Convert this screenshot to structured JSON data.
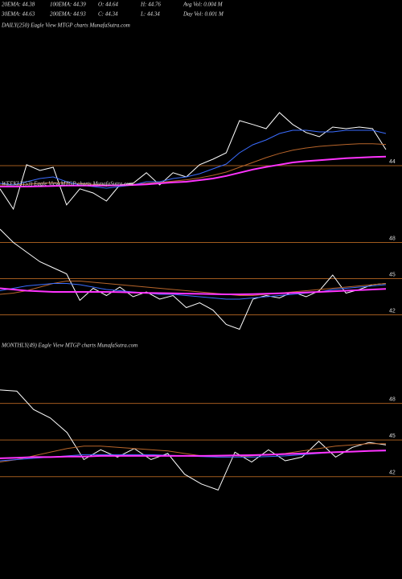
{
  "header": {
    "row1": [
      "20EMA: 44.38",
      "100EMA: 44.39",
      "O: 44.64",
      "H: 44.76",
      "Avg Vol: 0.004  M"
    ],
    "row2": [
      "30EMA: 44.63",
      "200EMA: 44.93",
      "C: 44.34",
      "L: 44.34",
      "Day Vol: 0.001 M"
    ]
  },
  "chart_data": [
    {
      "type": "line",
      "title": "DAILY(250) Eagle  View  MTGP charts MunafaSutra.com",
      "ylim": [
        42.5,
        46.2
      ],
      "yticks": [
        44
      ],
      "grid": true,
      "grid_color": "#a05a1e",
      "series": [
        {
          "name": "Price",
          "color": "#ffffff",
          "values": [
            43.28,
            42.65,
            44.03,
            43.85,
            43.95,
            42.78,
            43.28,
            43.15,
            42.9,
            43.4,
            43.45,
            43.78,
            43.4,
            43.78,
            43.65,
            44.03,
            44.2,
            44.4,
            45.4,
            45.28,
            45.15,
            45.65,
            45.28,
            45.03,
            44.9,
            45.2,
            45.15,
            45.2,
            45.15,
            44.5
          ]
        },
        {
          "name": "EMA mid",
          "color": "#b8652a",
          "values": [
            43.4,
            43.4,
            43.42,
            43.45,
            43.47,
            43.46,
            43.44,
            43.42,
            43.4,
            43.4,
            43.42,
            43.45,
            43.48,
            43.52,
            43.56,
            43.62,
            43.7,
            43.8,
            43.95,
            44.1,
            44.25,
            44.38,
            44.48,
            44.55,
            44.6,
            44.63,
            44.66,
            44.68,
            44.68,
            44.66
          ]
        },
        {
          "name": "EMA fast",
          "color": "#3a6cff",
          "values": [
            43.45,
            43.4,
            43.5,
            43.6,
            43.65,
            43.5,
            43.4,
            43.35,
            43.3,
            43.35,
            43.4,
            43.5,
            43.5,
            43.6,
            43.65,
            43.75,
            43.9,
            44.05,
            44.4,
            44.65,
            44.8,
            45.0,
            45.1,
            45.1,
            45.05,
            45.05,
            45.1,
            45.1,
            45.1,
            45.0
          ]
        },
        {
          "name": "EMA slow",
          "color": "#ff33ff",
          "values": [
            43.35,
            43.35,
            43.35,
            43.36,
            43.37,
            43.38,
            43.38,
            43.38,
            43.38,
            43.39,
            43.4,
            43.42,
            43.45,
            43.48,
            43.5,
            43.55,
            43.6,
            43.68,
            43.78,
            43.88,
            43.96,
            44.03,
            44.1,
            44.14,
            44.17,
            44.2,
            44.23,
            44.25,
            44.27,
            44.28
          ]
        }
      ]
    },
    {
      "type": "line",
      "title": "WEEKLY(53) Eagle  View  MTGP charts MunafaSutra.com",
      "ylim": [
        40.5,
        50.3
      ],
      "yticks": [
        48,
        45,
        42
      ],
      "grid": true,
      "grid_color": "#a05a1e",
      "series": [
        {
          "name": "Price",
          "color": "#ffffff",
          "values": [
            49.1,
            48.0,
            47.2,
            46.4,
            45.9,
            45.4,
            43.2,
            44.2,
            43.6,
            44.3,
            43.5,
            43.9,
            43.3,
            43.6,
            42.6,
            43.0,
            42.4,
            41.2,
            40.8,
            43.3,
            43.6,
            43.4,
            43.9,
            43.5,
            44.0,
            45.3,
            43.8,
            44.1,
            44.5,
            44.6
          ]
        },
        {
          "name": "EMA mid",
          "color": "#b8652a",
          "values": [
            43.7,
            43.8,
            44.0,
            44.3,
            44.6,
            44.8,
            44.8,
            44.7,
            44.6,
            44.5,
            44.4,
            44.3,
            44.2,
            44.1,
            44.0,
            43.9,
            43.8,
            43.7,
            43.6,
            43.6,
            43.7,
            43.8,
            43.9,
            44.0,
            44.1,
            44.2,
            44.3,
            44.4,
            44.5,
            44.6
          ]
        },
        {
          "name": "EMA fast",
          "color": "#3a6cff",
          "values": [
            44.0,
            44.2,
            44.4,
            44.5,
            44.6,
            44.6,
            44.5,
            44.3,
            44.1,
            44.0,
            43.9,
            43.8,
            43.7,
            43.7,
            43.6,
            43.5,
            43.4,
            43.3,
            43.3,
            43.4,
            43.5,
            43.6,
            43.7,
            43.8,
            43.9,
            44.1,
            44.2,
            44.3,
            44.4,
            44.5
          ]
        },
        {
          "name": "EMA slow",
          "color": "#ff33ff",
          "values": [
            44.2,
            44.1,
            44.0,
            43.95,
            43.9,
            43.9,
            43.9,
            43.9,
            43.9,
            43.88,
            43.85,
            43.82,
            43.8,
            43.78,
            43.76,
            43.74,
            43.72,
            43.7,
            43.7,
            43.72,
            43.75,
            43.78,
            43.82,
            43.86,
            43.9,
            43.95,
            44.0,
            44.05,
            44.1,
            44.15
          ]
        }
      ]
    },
    {
      "type": "line",
      "title": "MONTHLY(49) Eagle  View  MTGP charts MunafaSutra.com",
      "ylim": [
        40.6,
        51
      ],
      "yticks": [
        48,
        45,
        42
      ],
      "grid": true,
      "grid_color": "#a05a1e",
      "series": [
        {
          "name": "Price",
          "color": "#ffffff",
          "values": [
            49.1,
            49.0,
            47.5,
            46.8,
            45.6,
            43.4,
            44.2,
            43.6,
            44.3,
            43.4,
            43.9,
            42.2,
            41.4,
            40.9,
            44.0,
            43.2,
            44.2,
            43.3,
            43.6,
            44.9,
            43.6,
            44.4,
            44.8,
            44.6
          ]
        },
        {
          "name": "EMA mid",
          "color": "#b8652a",
          "values": [
            43.2,
            43.4,
            43.7,
            44.0,
            44.3,
            44.5,
            44.5,
            44.4,
            44.3,
            44.2,
            44.1,
            43.9,
            43.7,
            43.6,
            43.6,
            43.7,
            43.8,
            43.9,
            44.1,
            44.3,
            44.5,
            44.6,
            44.7,
            44.7
          ]
        },
        {
          "name": "EMA fast",
          "color": "#3a6cff",
          "values": [
            43.3,
            43.4,
            43.5,
            43.6,
            43.7,
            43.8,
            43.8,
            43.8,
            43.8,
            43.8,
            43.75,
            43.7,
            43.65,
            43.6,
            43.6,
            43.6,
            43.65,
            43.7,
            43.8,
            43.9,
            44.0,
            44.05,
            44.1,
            44.1
          ]
        },
        {
          "name": "EMA slow",
          "color": "#ff33ff",
          "values": [
            43.5,
            43.55,
            43.6,
            43.6,
            43.65,
            43.65,
            43.7,
            43.7,
            43.7,
            43.7,
            43.7,
            43.7,
            43.7,
            43.72,
            43.74,
            43.76,
            43.8,
            43.85,
            43.9,
            43.95,
            44.0,
            44.05,
            44.1,
            44.15
          ]
        }
      ]
    }
  ]
}
